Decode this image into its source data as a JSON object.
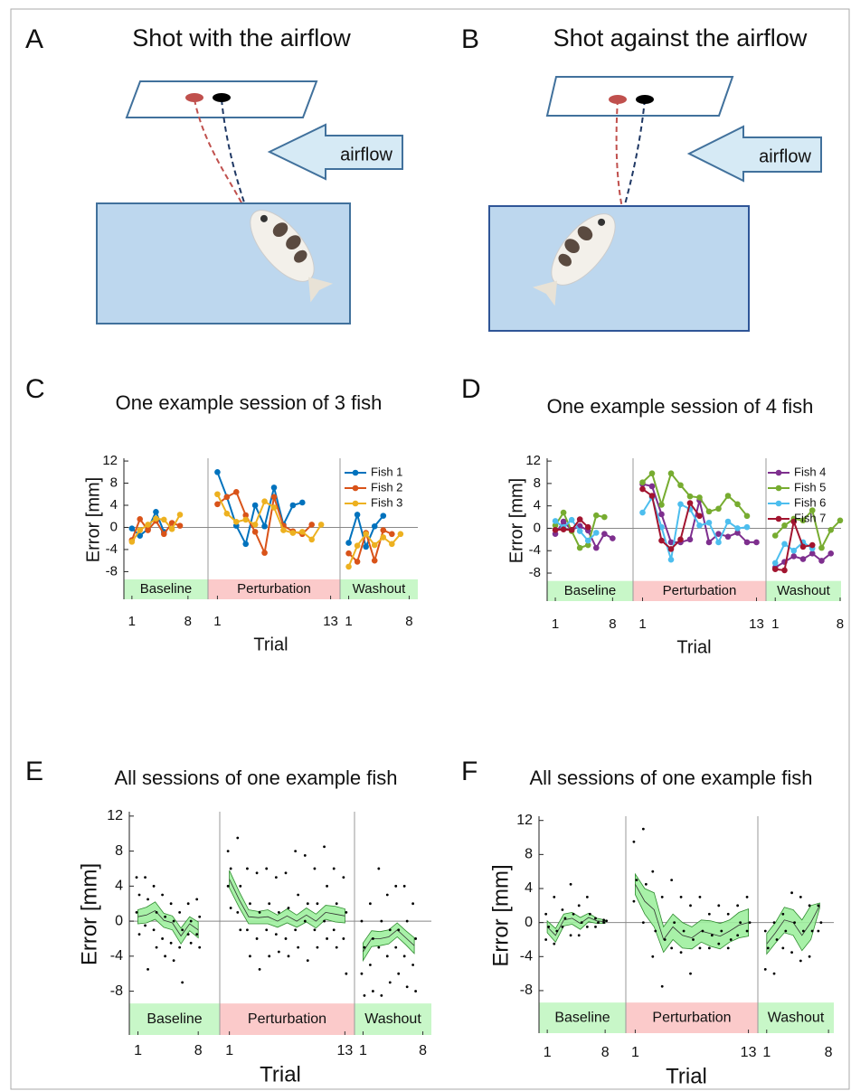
{
  "panels": [
    {
      "letter": "A",
      "title": "Shot with the airflow",
      "arrow_label": "airflow"
    },
    {
      "letter": "B",
      "title": "Shot against the airflow",
      "arrow_label": "airflow"
    }
  ],
  "chart_data": [
    {
      "letter": "C",
      "type": "line",
      "title": "One example session of 3 fish",
      "ylabel": "Error [mm]",
      "xlabel": "Trial",
      "ylim": [
        -13,
        12.5
      ],
      "yticks": [
        -8,
        -4,
        0,
        4,
        8,
        12
      ],
      "legend": "upper right",
      "phases": [
        {
          "name": "Baseline",
          "color": "#c8f7c8",
          "xlim": [
            0,
            10.5
          ],
          "xticks": [
            1,
            8
          ]
        },
        {
          "name": "Perturbation",
          "color": "#fbcaca",
          "xlim": [
            0,
            14
          ],
          "xticks": [
            1,
            13
          ]
        },
        {
          "name": "Washout",
          "color": "#c8f7c8",
          "xlim": [
            0,
            9
          ],
          "xticks": [
            1,
            8
          ]
        }
      ],
      "series": [
        {
          "name": "Fish 1",
          "color": "#0072bd",
          "values": [
            [
              -0.2,
              -1.5,
              -0.3,
              2.8,
              -0.8,
              null,
              null,
              null
            ],
            [
              10,
              5.5,
              0.3,
              -3,
              4,
              0.2,
              7.2,
              0.5,
              4,
              4.5,
              null,
              null,
              null
            ],
            [
              -2.8,
              2.3,
              -3.5,
              0.2,
              2.1,
              null,
              null,
              null
            ]
          ]
        },
        {
          "name": "Fish 2",
          "color": "#d95319",
          "values": [
            [
              -2.3,
              1.5,
              -0.5,
              1.2,
              -1.2,
              0.8,
              0.3,
              null
            ],
            [
              4.2,
              5.5,
              6.4,
              2.2,
              -0.8,
              -4.6,
              5.5,
              0.3,
              -0.7,
              -1.2,
              0.5,
              null,
              null
            ],
            [
              -4.7,
              -6.2,
              -1,
              -6,
              -0.5,
              -1.2,
              null,
              null
            ]
          ]
        },
        {
          "name": "Fish 3",
          "color": "#edb120",
          "values": [
            [
              -2.6,
              -0.5,
              0.5,
              1.6,
              1.4,
              -0.3,
              2.3,
              null
            ],
            [
              6,
              2.5,
              1,
              1.4,
              0.5,
              4.7,
              3.6,
              -0.5,
              -1,
              -0.8,
              -2.2,
              0.5,
              null
            ],
            [
              -7.1,
              -3.3,
              -1.2,
              -3.2,
              -1.8,
              -3,
              -1.2,
              null
            ]
          ]
        }
      ]
    },
    {
      "letter": "D",
      "type": "line",
      "title": "One example session of 4 fish",
      "ylabel": "Error [mm]",
      "xlabel": "Trial",
      "ylim": [
        -13,
        12.5
      ],
      "yticks": [
        -8,
        -4,
        0,
        4,
        8,
        12
      ],
      "legend": "upper right",
      "phases": [
        {
          "name": "Baseline",
          "color": "#c8f7c8",
          "xlim": [
            0,
            10.5
          ],
          "xticks": [
            1,
            8
          ]
        },
        {
          "name": "Perturbation",
          "color": "#fbcaca",
          "xlim": [
            0,
            14
          ],
          "xticks": [
            1,
            13
          ]
        },
        {
          "name": "Washout",
          "color": "#c8f7c8",
          "xlim": [
            0,
            8.1
          ],
          "xticks": [
            1,
            8
          ]
        }
      ],
      "series": [
        {
          "name": "Fish 4",
          "color": "#7e2f8e",
          "values": [
            [
              -1,
              1.2,
              -0.3,
              0.4,
              -0.4,
              -3.5,
              -1,
              -1.8
            ],
            [
              7.9,
              7.5,
              2.5,
              -2.5,
              -2.5,
              -2,
              5,
              -2.5,
              -1,
              -1.5,
              -0.8,
              -2.5,
              -2.5
            ],
            [
              -7,
              -6,
              -5,
              -5.5,
              -4.5,
              -5.8,
              -4.5,
              null
            ]
          ]
        },
        {
          "name": "Fish 5",
          "color": "#77ac30",
          "values": [
            [
              0.5,
              2.8,
              -0.5,
              -3.5,
              -3,
              2.3,
              2,
              null
            ],
            [
              8.2,
              9.8,
              4.2,
              9.8,
              7.7,
              5.7,
              5.5,
              3,
              3.5,
              5.8,
              4.3,
              2.2,
              null
            ],
            [
              -1.3,
              0.5,
              1.7,
              1.4,
              3.2,
              -3.5,
              -0.3,
              1.4
            ]
          ]
        },
        {
          "name": "Fish 6",
          "color": "#4dbeee",
          "values": [
            [
              1.3,
              0.2,
              1.5,
              -0.5,
              -2.2,
              -0.8,
              null,
              null
            ],
            [
              2.8,
              5.5,
              0.2,
              -5.6,
              4.3,
              3.4,
              0.5,
              1,
              -2.5,
              1.2,
              0,
              0.2,
              null
            ],
            [
              -6.2,
              -2.8,
              -4,
              -2.5,
              -3.6,
              null,
              null,
              null
            ]
          ]
        },
        {
          "name": "Fish 7",
          "color": "#a2142f",
          "values": [
            [
              -0.3,
              -0.2,
              -0.3,
              1.6,
              0.2,
              null,
              null,
              null
            ],
            [
              7,
              5.8,
              -2.2,
              -3.7,
              -2,
              4.5,
              2.2,
              null,
              null,
              null,
              null,
              null,
              null
            ],
            [
              -7.3,
              -7.5,
              1.2,
              -3.3,
              -3,
              null,
              null,
              null
            ]
          ]
        }
      ]
    },
    {
      "letter": "E",
      "type": "band",
      "title": "All sessions of one example fish",
      "ylabel": "Error [mm]",
      "xlabel": "Trial",
      "ylim": [
        -13,
        12.5
      ],
      "yticks": [
        -8,
        -4,
        0,
        4,
        8,
        12
      ],
      "band_color": "#9ef09e",
      "line_color": "#2e8b2e",
      "phases": [
        {
          "name": "Baseline",
          "color": "#c8f7c8",
          "xlim": [
            0,
            10.5
          ],
          "xticks": [
            1,
            8
          ]
        },
        {
          "name": "Perturbation",
          "color": "#fbcaca",
          "xlim": [
            0,
            14
          ],
          "xticks": [
            1,
            13
          ]
        },
        {
          "name": "Washout",
          "color": "#c8f7c8",
          "xlim": [
            0,
            9
          ],
          "xticks": [
            1,
            8
          ]
        }
      ],
      "mean": [
        [
          0.5,
          0.7,
          1.2,
          0.1,
          -0.2,
          -1.7,
          -0.3,
          -1
        ],
        [
          4.8,
          2.5,
          0.5,
          0.4,
          0.5,
          0,
          0.6,
          0,
          0.7,
          0,
          1,
          0.8,
          0.6
        ],
        [
          -3.5,
          -2,
          -2,
          -1.8,
          -1,
          -1.9,
          -2.8
        ]
      ],
      "error": [
        [
          0.8,
          0.9,
          1,
          0.8,
          0.8,
          0.9,
          0.8,
          0.9
        ],
        [
          1,
          0.9,
          0.8,
          0.7,
          0.8,
          0.7,
          0.8,
          0.7,
          0.8,
          0.8,
          0.8,
          0.9,
          0.8
        ],
        [
          1,
          0.9,
          0.8,
          0.8,
          0.8,
          0.8,
          0.9
        ]
      ],
      "points": [
        [
          [
            5,
            3,
            1,
            -1.5
          ],
          [
            5,
            2.5,
            -0.5,
            -5.5
          ],
          [
            4,
            1,
            -1,
            -3
          ],
          [
            3,
            0.5,
            -2,
            -4
          ],
          [
            2,
            0,
            -2.5,
            -4.5
          ],
          [
            1,
            -1,
            -3,
            -7
          ],
          [
            2,
            0,
            -1.5,
            -2.5
          ],
          [
            2.5,
            0.5,
            -1.5,
            -3
          ]
        ],
        [
          [
            8,
            6,
            4,
            1.5
          ],
          [
            9.5,
            4,
            1,
            -1
          ],
          [
            6,
            2,
            -1,
            -4
          ],
          [
            5.5,
            1,
            -2,
            -5.5
          ],
          [
            6,
            2,
            -1,
            -4
          ],
          [
            5,
            1,
            -1.5,
            -3.5
          ],
          [
            5.5,
            1.5,
            -2,
            -4
          ],
          [
            8,
            3,
            -1,
            -3
          ],
          [
            7.5,
            2,
            0,
            -4.5
          ],
          [
            6,
            2,
            -1,
            -3
          ],
          [
            8.5,
            4,
            0,
            -2
          ],
          [
            6,
            2,
            -1,
            -3
          ],
          [
            5,
            1,
            -2,
            -6
          ]
        ],
        [
          [
            0,
            -3,
            -6,
            -8.5
          ],
          [
            2,
            -2,
            -5,
            -8
          ],
          [
            6,
            0,
            -3,
            -8.5
          ],
          [
            3,
            -1,
            -4,
            -7
          ],
          [
            4,
            -1,
            -3,
            -6
          ],
          [
            4,
            0,
            -4,
            -7.5
          ],
          [
            2,
            -2,
            -5,
            -8
          ]
        ]
      ]
    },
    {
      "letter": "F",
      "type": "band",
      "title": "All sessions of one example fish",
      "ylabel": "Error [mm]",
      "xlabel": "Trial",
      "ylim": [
        -13,
        12.5
      ],
      "yticks": [
        -8,
        -4,
        0,
        4,
        8,
        12
      ],
      "band_color": "#9ef09e",
      "line_color": "#2e8b2e",
      "phases": [
        {
          "name": "Baseline",
          "color": "#c8f7c8",
          "xlim": [
            0,
            10.5
          ],
          "xticks": [
            1,
            8
          ]
        },
        {
          "name": "Perturbation",
          "color": "#fbcaca",
          "xlim": [
            0,
            14
          ],
          "xticks": [
            1,
            13
          ]
        },
        {
          "name": "Washout",
          "color": "#c8f7c8",
          "xlim": [
            0,
            8.6
          ],
          "xticks": [
            1,
            8
          ]
        }
      ],
      "mean": [
        [
          -0.5,
          -1.5,
          0.3,
          0.5,
          -0.1,
          0.6,
          0.2,
          0.1
        ],
        [
          4.5,
          2.5,
          1.5,
          -2,
          -0.5,
          -1.5,
          -1.8,
          -1,
          -1.3,
          -1.6,
          -1,
          -0.3,
          0
        ],
        [
          -2.5,
          -1.2,
          0.3,
          0,
          -1.5,
          0,
          2
        ]
      ],
      "error": [
        [
          0.7,
          0.8,
          0.7,
          0.7,
          0.7,
          0.5,
          0.3,
          0.2
        ],
        [
          1.2,
          1.5,
          2,
          1.5,
          1.5,
          1.5,
          1.3,
          1.3,
          1.5,
          1.5,
          1.3,
          1.5,
          1.6
        ],
        [
          1.2,
          1.2,
          1.5,
          1.5,
          1.8,
          2,
          0.3
        ]
      ],
      "points": [
        [
          [
            1,
            -0.5,
            -2
          ],
          [
            3,
            -1,
            -2.5
          ],
          [
            1.5,
            0.5,
            -0.5
          ],
          [
            4.5,
            1,
            -1.5
          ],
          [
            2,
            0,
            -1.5
          ],
          [
            3,
            1,
            -0.5
          ],
          [
            0.5,
            0,
            -0.5
          ],
          [
            0.3,
            0.2,
            0
          ]
        ],
        [
          [
            9.5,
            5,
            2.5
          ],
          [
            11,
            4.5,
            0
          ],
          [
            6,
            -1,
            -4
          ],
          [
            3,
            -2,
            -7.5
          ],
          [
            5,
            0,
            -3
          ],
          [
            3,
            -1,
            -3.5
          ],
          [
            2,
            -2,
            -6
          ],
          [
            3,
            -1,
            -3
          ],
          [
            1,
            -1.5,
            -3
          ],
          [
            2,
            -1,
            -2.5
          ],
          [
            1,
            -2,
            -3
          ],
          [
            2,
            0,
            -1.5
          ],
          [
            3,
            0,
            -1
          ]
        ],
        [
          [
            -1,
            -3,
            -5.5
          ],
          [
            0,
            -2,
            -6
          ],
          [
            1,
            -1,
            -3
          ],
          [
            3.5,
            0,
            -3.5
          ],
          [
            3,
            -1,
            -4.5
          ],
          [
            2,
            -1,
            -4
          ],
          [
            2,
            0,
            -1
          ]
        ]
      ]
    }
  ]
}
